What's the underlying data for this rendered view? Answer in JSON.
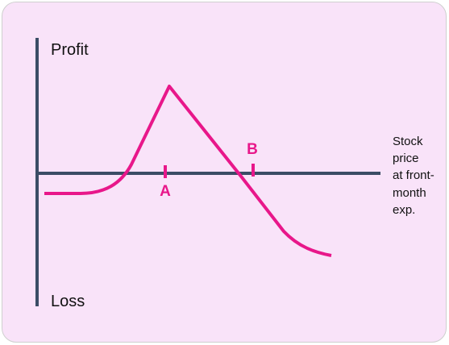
{
  "labels": {
    "profit": "Profit",
    "loss": "Loss",
    "x_axis": [
      "Stock",
      "price",
      "at front-",
      "month",
      "exp."
    ],
    "point_a": "A",
    "point_b": "B"
  },
  "colors": {
    "background": "#f9e3f9",
    "axis": "#3b4d66",
    "curve": "#e8178a"
  }
}
